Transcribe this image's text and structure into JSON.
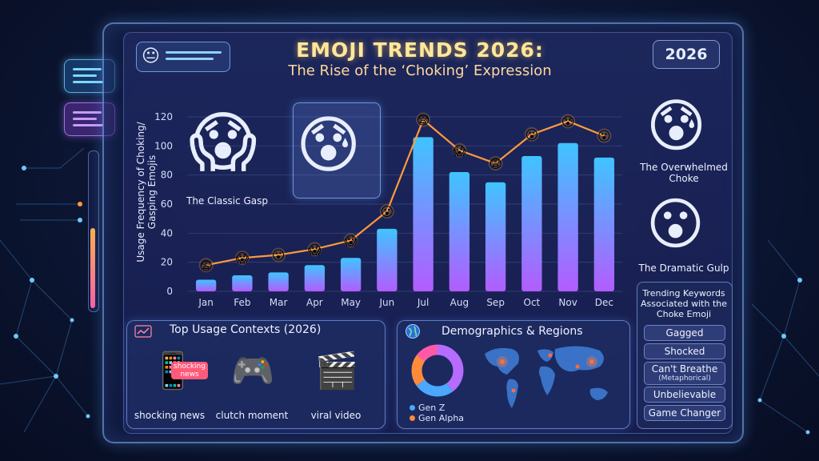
{
  "header": {
    "title": "EMOJI TRENDS 2026:",
    "subtitle": "The Rise of the ‘Choking’ Expression",
    "year_badge": "2026",
    "pill_emoji": "😐"
  },
  "chart_data": {
    "type": "bar",
    "categories": [
      "Jan",
      "Feb",
      "Mar",
      "Apr",
      "May",
      "Jun",
      "Jul",
      "Aug",
      "Sep",
      "Oct",
      "Nov",
      "Dec"
    ],
    "values": [
      8,
      11,
      13,
      18,
      23,
      43,
      106,
      82,
      75,
      93,
      102,
      92
    ],
    "line_values": [
      18,
      23,
      25,
      29,
      35,
      55,
      118,
      97,
      88,
      108,
      117,
      107
    ],
    "line_emojis": [
      "😨",
      "😱",
      "😮",
      "😱",
      "😱",
      "😮",
      "😨",
      "😱",
      "😨",
      "😮",
      "😰",
      "😮"
    ],
    "ylabel": "Usage Frequency of Choking/\nGasping Emojis",
    "ylim": [
      0,
      120
    ],
    "yticks": [
      0,
      20,
      40,
      60,
      80,
      100,
      120
    ],
    "grid": true,
    "colors": {
      "bar_top": "#3fc4ff",
      "bar_bottom": "#b35cff",
      "line": "#ff9a3c"
    }
  },
  "emoji_callouts": {
    "classic": {
      "emoji": "😱",
      "label": "The Classic Gasp"
    },
    "featured": {
      "emoji": "😰"
    },
    "overwhelmed": {
      "emoji": "😰",
      "label": "The Overwhelmed Choke"
    },
    "dramatic": {
      "emoji": "😮",
      "label": "The Dramatic Gulp"
    }
  },
  "keywords": {
    "title": "Trending Keywords Associated with the Choke Emoji",
    "items": [
      {
        "label": "Gagged",
        "note": ""
      },
      {
        "label": "Shocked",
        "note": ""
      },
      {
        "label": "Can't Breathe",
        "note": "(Metaphorical)"
      },
      {
        "label": "Unbelievable",
        "note": ""
      },
      {
        "label": "Game Changer",
        "note": ""
      }
    ]
  },
  "contexts": {
    "title": "Top Usage Contexts (2026)",
    "items": [
      {
        "emoji": "📱",
        "label": "shocking news",
        "overlay": "shocking news"
      },
      {
        "emoji": "🎮",
        "label": "clutch moment",
        "overlay": ""
      },
      {
        "emoji": "🎬",
        "label": "viral video",
        "overlay": ""
      }
    ]
  },
  "demographics": {
    "title": "Demographics & Regions",
    "legend": [
      {
        "label": "Gen Z",
        "color": "#4aa8ff"
      },
      {
        "label": "Gen Alpha",
        "color": "#ff8a3c"
      }
    ],
    "shares": [
      {
        "name": "",
        "value": 0.4,
        "color": "#b56cff"
      },
      {
        "name": "",
        "value": 0.25,
        "color": "#4aa8ff"
      },
      {
        "name": "",
        "value": 0.2,
        "color": "#ff8a3c"
      },
      {
        "name": "",
        "value": 0.15,
        "color": "#ff5aa8"
      }
    ]
  }
}
